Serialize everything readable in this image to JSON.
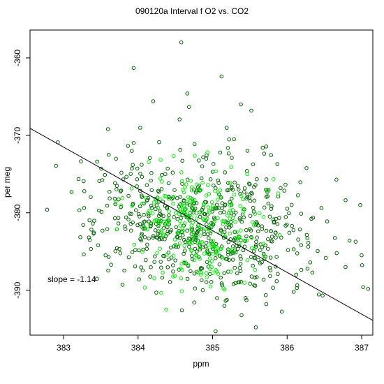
{
  "chart_data": {
    "type": "scatter",
    "title": "090120a   Interval f O2 vs. CO2",
    "xlabel": "ppm",
    "ylabel": "per meg",
    "xlim": [
      382.55,
      387.15
    ],
    "ylim": [
      -395.8,
      -356.4
    ],
    "x_ticks": [
      383,
      384,
      385,
      386,
      387
    ],
    "y_ticks": [
      -360,
      -370,
      -380,
      -390
    ],
    "y_reversed": true,
    "grid": false,
    "legend": "none",
    "annotation": "slope =  -1.14",
    "fit_line": {
      "slope": -1.14,
      "points": [
        [
          382.55,
          -369.1
        ],
        [
          387.15,
          -393.9
        ]
      ]
    },
    "series": [
      {
        "color": "#006400",
        "marker": "open-circle",
        "count": 650,
        "x_center": 384.85,
        "x_sd": 0.75,
        "y_center": -381.3,
        "y_sd": 4.6,
        "seed": 7
      },
      {
        "color": "#00ee00",
        "marker": "open-circle",
        "count": 260,
        "x_center": 384.75,
        "x_sd": 0.45,
        "y_center": -381.6,
        "y_sd": 3.7,
        "seed": 19
      }
    ],
    "outliers": [
      {
        "x": 384.58,
        "y": -358.0
      },
      {
        "x": 383.94,
        "y": -361.3
      },
      {
        "x": 385.12,
        "y": -362.4
      },
      {
        "x": 384.66,
        "y": -364.6
      },
      {
        "x": 385.38,
        "y": -366.0
      },
      {
        "x": 385.52,
        "y": -366.8
      },
      {
        "x": 385.04,
        "y": -395.3
      },
      {
        "x": 385.58,
        "y": -394.8
      },
      {
        "x": 382.78,
        "y": -379.6
      },
      {
        "x": 386.98,
        "y": -379.0
      },
      {
        "x": 387.02,
        "y": -389.6
      }
    ]
  }
}
